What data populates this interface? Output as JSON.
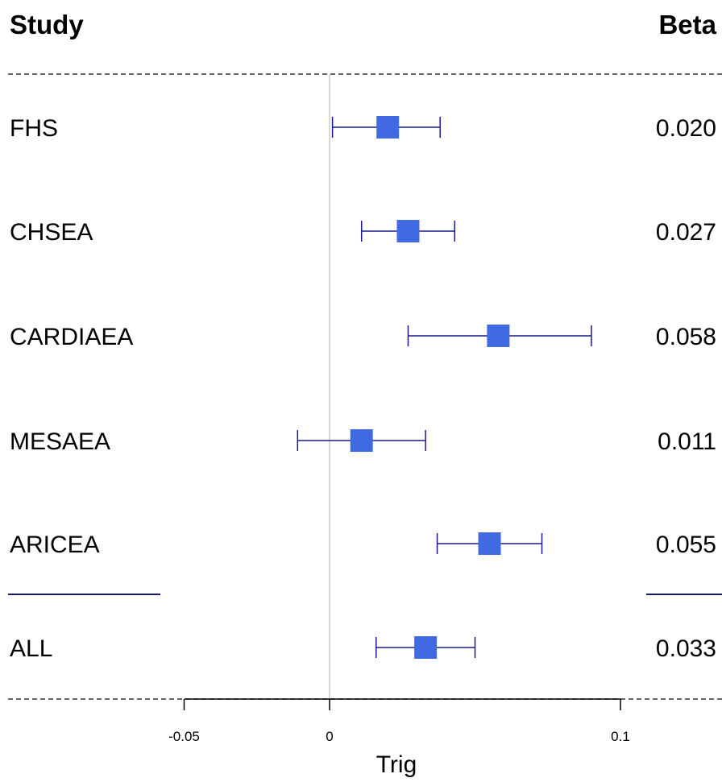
{
  "chart_data": {
    "type": "forest",
    "header_study": "Study",
    "header_beta": "Beta",
    "xlabel": "Trig",
    "xlim": [
      -0.1,
      0.135
    ],
    "xticks": [
      -0.05,
      0,
      0.1
    ],
    "xtick_labels": [
      "-0.05",
      "0",
      "0.1"
    ],
    "zero_line": 0,
    "colors": {
      "point": "#4169E1",
      "ci": "#1a1a8c",
      "zero_line": "#cccccc",
      "divider": "#1a1a6e"
    },
    "studies": [
      {
        "name": "FHS",
        "beta": 0.02,
        "beta_label": "0.020",
        "ci_low": 0.001,
        "ci_high": 0.038
      },
      {
        "name": "CHSEA",
        "beta": 0.027,
        "beta_label": "0.027",
        "ci_low": 0.011,
        "ci_high": 0.043
      },
      {
        "name": "CARDIAEA",
        "beta": 0.058,
        "beta_label": "0.058",
        "ci_low": 0.027,
        "ci_high": 0.09
      },
      {
        "name": "MESAEA",
        "beta": 0.011,
        "beta_label": "0.011",
        "ci_low": -0.011,
        "ci_high": 0.033
      },
      {
        "name": "ARICEA",
        "beta": 0.055,
        "beta_label": "0.055",
        "ci_low": 0.037,
        "ci_high": 0.073
      }
    ],
    "summary": {
      "name": "ALL",
      "beta": 0.033,
      "beta_label": "0.033",
      "ci_low": 0.016,
      "ci_high": 0.05
    }
  }
}
